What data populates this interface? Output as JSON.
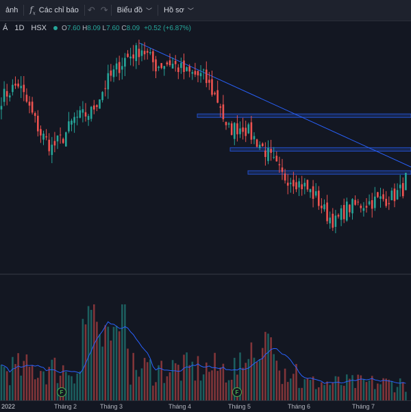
{
  "toolbar": {
    "item0": "ảnh",
    "indicators_label": "Các chỉ báo",
    "indicators_icon": "fx-icon",
    "chart_label": "Biểu đồ",
    "profile_label": "Hồ sơ"
  },
  "legend": {
    "symbol_prefix": "Á",
    "interval": "1D",
    "exchange": "HSX",
    "o_label": "O",
    "o": "7.60",
    "h_label": "H",
    "h": "8.09",
    "l_label": "L",
    "l": "7.60",
    "c_label": "C",
    "c": "8.09",
    "change": "+0.52 (+6.87%)"
  },
  "xaxis": {
    "year": "2022",
    "ticks": [
      "Tháng 2",
      "Tháng 3",
      "Tháng 4",
      "Tháng 5",
      "Tháng 6",
      "Tháng 7"
    ]
  },
  "events": [
    {
      "label": "F"
    },
    {
      "label": "F"
    }
  ],
  "colors": {
    "up": "#26a69a",
    "down": "#ef5350",
    "zone": "#2962ff",
    "trendline": "#2962ff",
    "ma": "#2962ff"
  },
  "chart_data": {
    "type": "candlestick",
    "interval": "1D",
    "last_ohlc": {
      "open": 7.6,
      "high": 8.09,
      "low": 7.6,
      "close": 8.09
    },
    "last_change": 0.52,
    "last_change_pct": 6.87,
    "month_labels": [
      "Tháng 2",
      "Tháng 3",
      "Tháng 4",
      "Tháng 5",
      "Tháng 6",
      "Tháng 7"
    ],
    "price_range": [
      6.2,
      11.8
    ],
    "close_path": [
      [
        0,
        10.2
      ],
      [
        6,
        10.6
      ],
      [
        10,
        9.9
      ],
      [
        14,
        9.2
      ],
      [
        18,
        8.8
      ],
      [
        22,
        9.1
      ],
      [
        26,
        9.6
      ],
      [
        32,
        9.8
      ],
      [
        38,
        10.7
      ],
      [
        44,
        11.3
      ],
      [
        50,
        11.6
      ],
      [
        55,
        11.1
      ],
      [
        60,
        11.2
      ],
      [
        66,
        10.9
      ],
      [
        72,
        10.8
      ],
      [
        78,
        10.0
      ],
      [
        80,
        9.3
      ],
      [
        86,
        9.4
      ],
      [
        92,
        8.9
      ],
      [
        95,
        8.6
      ],
      [
        100,
        8.0
      ],
      [
        104,
        7.9
      ],
      [
        108,
        7.7
      ],
      [
        112,
        7.4
      ],
      [
        116,
        6.9
      ],
      [
        119,
        6.7
      ],
      [
        123,
        7.1
      ],
      [
        128,
        7.2
      ],
      [
        133,
        7.3
      ],
      [
        139,
        7.4
      ],
      [
        144,
        7.7
      ]
    ],
    "zones": [
      {
        "top": 9.75,
        "bottom": 9.65
      },
      {
        "top": 8.8,
        "bottom": 8.7
      },
      {
        "top": 8.15,
        "bottom": 8.05
      }
    ],
    "trendline": {
      "from": [
        49,
        11.75
      ],
      "to": [
        146,
        8.25
      ]
    },
    "has_volume": true,
    "grid": false
  }
}
